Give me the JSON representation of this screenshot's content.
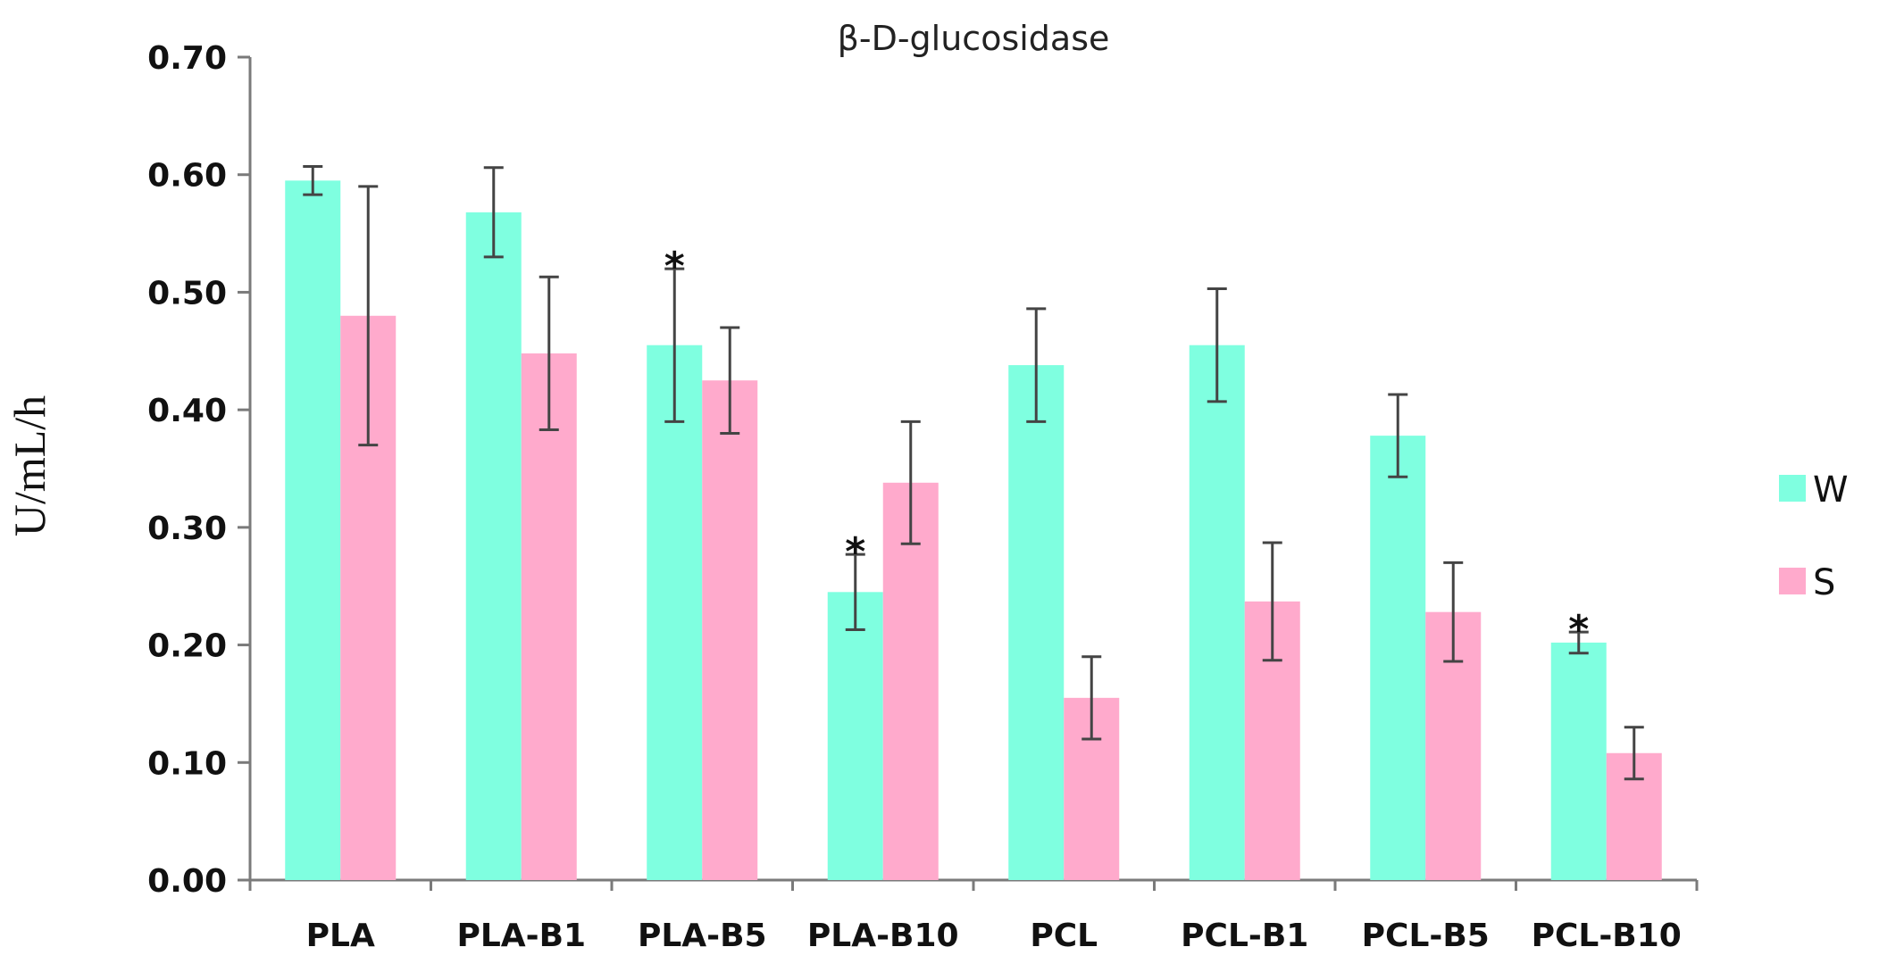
{
  "chart_data": {
    "type": "bar",
    "title": "β-D-glucosidase",
    "xlabel": "",
    "ylabel": "U/mL/h",
    "ylim": [
      0,
      0.7
    ],
    "ytick_values": [
      0,
      0.1,
      0.2,
      0.3,
      0.4,
      0.5,
      0.6,
      0.7
    ],
    "ytick_labels": [
      "0.00",
      "0.10",
      "0.20",
      "0.30",
      "0.40",
      "0.50",
      "0.60",
      "0.70"
    ],
    "categories": [
      "PLA",
      "PLA-B1",
      "PLA-B5",
      "PLA-B10",
      "PCL",
      "PCL-B1",
      "PCL-B5",
      "PCL-B10"
    ],
    "series": [
      {
        "name": "W",
        "color": "#7fffe0",
        "values": [
          0.595,
          0.568,
          0.455,
          0.245,
          0.438,
          0.455,
          0.378,
          0.202
        ],
        "errors": [
          0.012,
          0.038,
          0.065,
          0.032,
          0.048,
          0.048,
          0.035,
          0.009
        ]
      },
      {
        "name": "S",
        "color": "#ffaacc",
        "values": [
          0.48,
          0.448,
          0.425,
          0.338,
          0.155,
          0.237,
          0.228,
          0.108
        ],
        "errors": [
          0.11,
          0.065,
          0.045,
          0.052,
          0.035,
          0.05,
          0.042,
          0.022
        ]
      }
    ],
    "annotations": [
      {
        "category_index": 2,
        "series_index": 0,
        "text": "*"
      },
      {
        "category_index": 3,
        "series_index": 0,
        "text": "*"
      },
      {
        "category_index": 7,
        "series_index": 0,
        "text": "*"
      }
    ],
    "legend_position": "right",
    "grid": false
  }
}
